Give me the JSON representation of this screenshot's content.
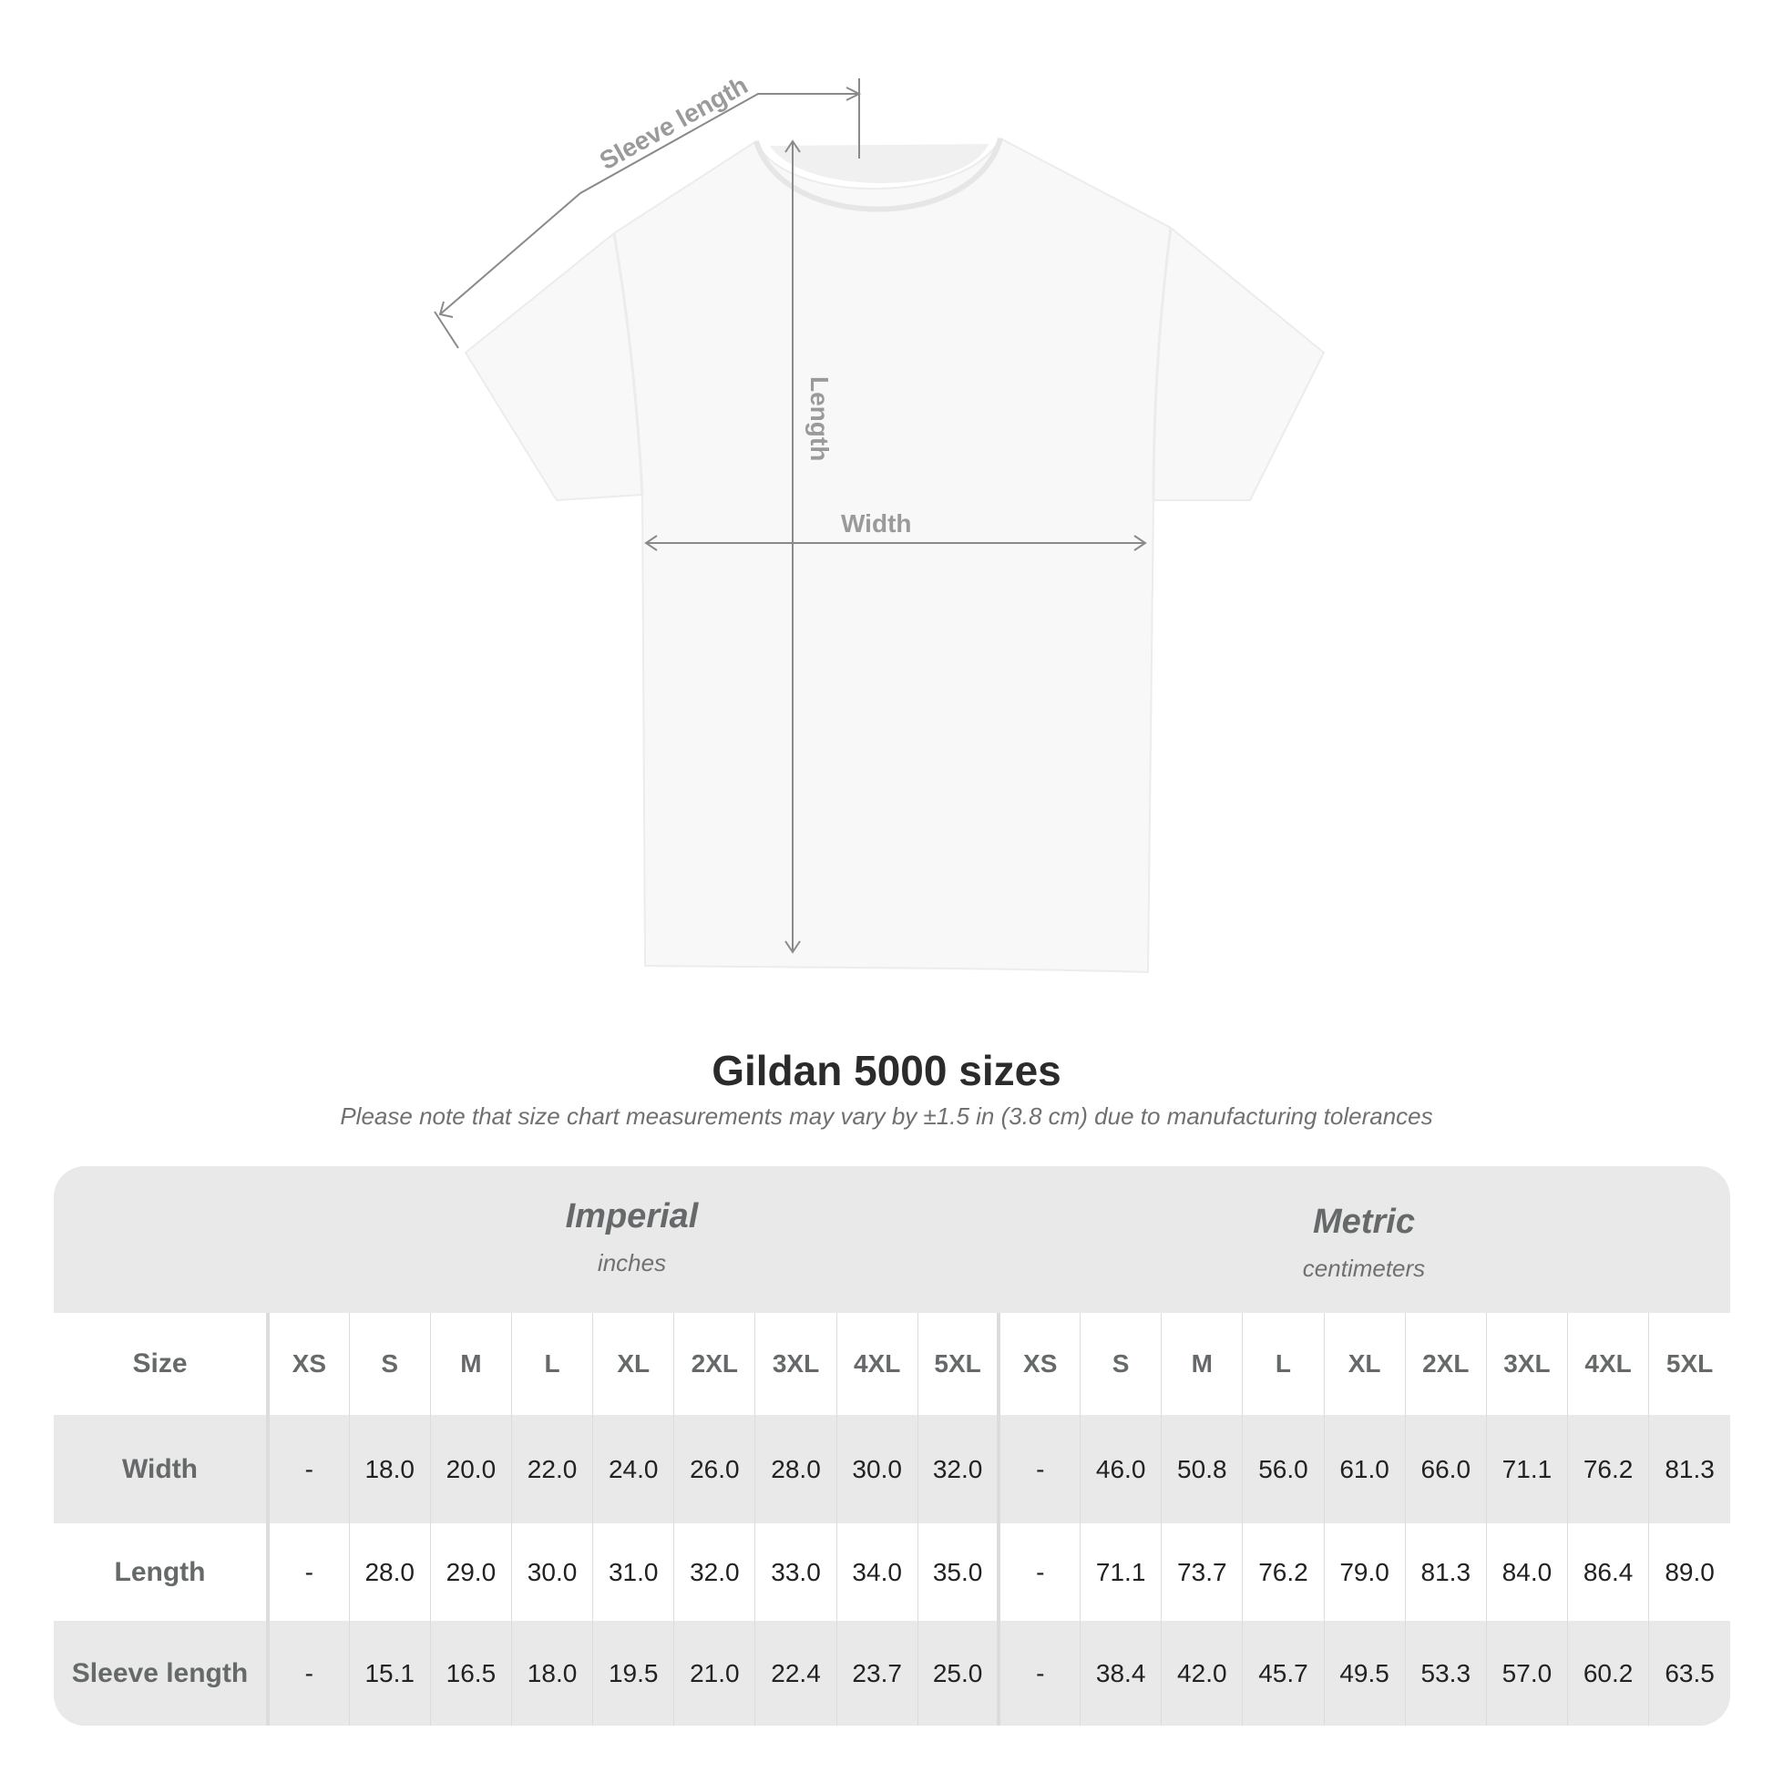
{
  "diagram": {
    "sleeve_label": "Sleeve length",
    "length_label": "Length",
    "width_label": "Width"
  },
  "title": "Gildan 5000 sizes",
  "subtitle": "Please note that size chart measurements may vary by ±1.5 in (3.8 cm) due to manufacturing tolerances",
  "imperial": {
    "name": "Imperial",
    "unit": "inches"
  },
  "metric": {
    "name": "Metric",
    "unit": "centimeters"
  },
  "chart_data": {
    "type": "table",
    "title": "Gildan 5000 sizes",
    "header_label": "Size",
    "sizes": [
      "XS",
      "S",
      "M",
      "L",
      "XL",
      "2XL",
      "3XL",
      "4XL",
      "5XL"
    ],
    "rows": [
      {
        "label": "Width",
        "imperial": [
          "-",
          "18.0",
          "20.0",
          "22.0",
          "24.0",
          "26.0",
          "28.0",
          "30.0",
          "32.0"
        ],
        "metric": [
          "-",
          "46.0",
          "50.8",
          "56.0",
          "61.0",
          "66.0",
          "71.1",
          "76.2",
          "81.3"
        ]
      },
      {
        "label": "Length",
        "imperial": [
          "-",
          "28.0",
          "29.0",
          "30.0",
          "31.0",
          "32.0",
          "33.0",
          "34.0",
          "35.0"
        ],
        "metric": [
          "-",
          "71.1",
          "73.7",
          "76.2",
          "79.0",
          "81.3",
          "84.0",
          "86.4",
          "89.0"
        ]
      },
      {
        "label": "Sleeve length",
        "imperial": [
          "-",
          "15.1",
          "16.5",
          "18.0",
          "19.5",
          "21.0",
          "22.4",
          "23.7",
          "25.0"
        ],
        "metric": [
          "-",
          "38.4",
          "42.0",
          "45.7",
          "49.5",
          "53.3",
          "57.0",
          "60.2",
          "63.5"
        ]
      }
    ]
  },
  "colors": {
    "band": "#e9e9e9",
    "label_text": "#66696a",
    "arrow": "#8a8a8a"
  }
}
